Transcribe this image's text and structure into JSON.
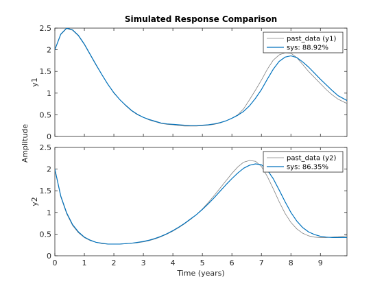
{
  "figure": {
    "title": "Simulated Response Comparison",
    "xlabel": "Time (years)",
    "shared_ylabel": "Amplitude"
  },
  "colors": {
    "measured": "#808080",
    "model": "#0072BD",
    "axes": "#262626",
    "background": "#ffffff"
  },
  "chart_data": [
    {
      "type": "line",
      "ylabel": "y1",
      "xlim": [
        0,
        9.9
      ],
      "ylim": [
        0,
        2.5
      ],
      "xticks": [
        0,
        1,
        2,
        3,
        4,
        5,
        6,
        7,
        8,
        9
      ],
      "yticks": [
        0,
        0.5,
        1,
        1.5,
        2,
        2.5
      ],
      "legend_position": "top-right",
      "series": [
        {
          "name": "past_data (y1)",
          "role": "measured",
          "x": [
            0,
            0.2,
            0.4,
            0.6,
            0.8,
            1.0,
            1.2,
            1.4,
            1.6,
            1.8,
            2.0,
            2.2,
            2.4,
            2.6,
            2.8,
            3.0,
            3.2,
            3.4,
            3.6,
            3.8,
            4.0,
            4.2,
            4.4,
            4.6,
            4.8,
            5.0,
            5.2,
            5.4,
            5.6,
            5.8,
            6.0,
            6.2,
            6.4,
            6.6,
            6.8,
            7.0,
            7.2,
            7.4,
            7.6,
            7.8,
            8.0,
            8.2,
            8.4,
            8.6,
            8.8,
            9.0,
            9.2,
            9.4,
            9.6,
            9.9
          ],
          "y": [
            2.0,
            2.35,
            2.49,
            2.45,
            2.32,
            2.12,
            1.88,
            1.64,
            1.42,
            1.2,
            1.0,
            0.85,
            0.71,
            0.59,
            0.5,
            0.44,
            0.38,
            0.34,
            0.3,
            0.28,
            0.27,
            0.25,
            0.24,
            0.24,
            0.24,
            0.25,
            0.26,
            0.28,
            0.31,
            0.36,
            0.42,
            0.5,
            0.64,
            0.85,
            1.07,
            1.3,
            1.55,
            1.76,
            1.88,
            1.93,
            1.92,
            1.82,
            1.66,
            1.5,
            1.36,
            1.22,
            1.08,
            0.96,
            0.86,
            0.76
          ]
        },
        {
          "name": "sys: 88.92%",
          "role": "model",
          "x": [
            0,
            0.2,
            0.4,
            0.6,
            0.8,
            1.0,
            1.2,
            1.4,
            1.6,
            1.8,
            2.0,
            2.2,
            2.4,
            2.6,
            2.8,
            3.0,
            3.2,
            3.4,
            3.6,
            3.8,
            4.0,
            4.2,
            4.4,
            4.6,
            4.8,
            5.0,
            5.2,
            5.4,
            5.6,
            5.8,
            6.0,
            6.2,
            6.4,
            6.6,
            6.8,
            7.0,
            7.2,
            7.4,
            7.6,
            7.8,
            8.0,
            8.2,
            8.4,
            8.6,
            8.8,
            9.0,
            9.2,
            9.4,
            9.6,
            9.9
          ],
          "y": [
            2.0,
            2.36,
            2.5,
            2.46,
            2.33,
            2.13,
            1.89,
            1.65,
            1.42,
            1.2,
            1.01,
            0.85,
            0.72,
            0.6,
            0.51,
            0.44,
            0.39,
            0.35,
            0.31,
            0.29,
            0.28,
            0.27,
            0.26,
            0.25,
            0.25,
            0.26,
            0.27,
            0.29,
            0.32,
            0.36,
            0.42,
            0.49,
            0.58,
            0.71,
            0.88,
            1.08,
            1.32,
            1.55,
            1.73,
            1.83,
            1.86,
            1.82,
            1.72,
            1.6,
            1.46,
            1.32,
            1.19,
            1.06,
            0.94,
            0.83
          ]
        }
      ]
    },
    {
      "type": "line",
      "ylabel": "y2",
      "xlim": [
        0,
        9.9
      ],
      "ylim": [
        0,
        2.5
      ],
      "xticks": [
        0,
        1,
        2,
        3,
        4,
        5,
        6,
        7,
        8,
        9
      ],
      "yticks": [
        0,
        0.5,
        1,
        1.5,
        2,
        2.5
      ],
      "legend_position": "top-right",
      "series": [
        {
          "name": "past_data (y2)",
          "role": "measured",
          "x": [
            0,
            0.2,
            0.4,
            0.6,
            0.8,
            1.0,
            1.2,
            1.4,
            1.6,
            1.8,
            2.0,
            2.2,
            2.4,
            2.6,
            2.8,
            3.0,
            3.2,
            3.4,
            3.6,
            3.8,
            4.0,
            4.2,
            4.4,
            4.6,
            4.8,
            5.0,
            5.2,
            5.4,
            5.6,
            5.8,
            6.0,
            6.2,
            6.4,
            6.6,
            6.8,
            7.0,
            7.2,
            7.4,
            7.6,
            7.8,
            8.0,
            8.2,
            8.4,
            8.6,
            8.8,
            9.0,
            9.2,
            9.4,
            9.6,
            9.9
          ],
          "y": [
            2.0,
            1.36,
            0.97,
            0.7,
            0.53,
            0.42,
            0.35,
            0.31,
            0.28,
            0.27,
            0.27,
            0.27,
            0.28,
            0.29,
            0.3,
            0.32,
            0.35,
            0.39,
            0.44,
            0.5,
            0.57,
            0.65,
            0.74,
            0.84,
            0.95,
            1.08,
            1.23,
            1.39,
            1.56,
            1.73,
            1.9,
            2.05,
            2.16,
            2.2,
            2.18,
            2.06,
            1.83,
            1.55,
            1.25,
            0.98,
            0.77,
            0.62,
            0.52,
            0.46,
            0.43,
            0.42,
            0.42,
            0.43,
            0.44,
            0.46
          ]
        },
        {
          "name": "sys: 86.35%",
          "role": "model",
          "x": [
            0,
            0.2,
            0.4,
            0.6,
            0.8,
            1.0,
            1.2,
            1.4,
            1.6,
            1.8,
            2.0,
            2.2,
            2.4,
            2.6,
            2.8,
            3.0,
            3.2,
            3.4,
            3.6,
            3.8,
            4.0,
            4.2,
            4.4,
            4.6,
            4.8,
            5.0,
            5.2,
            5.4,
            5.6,
            5.8,
            6.0,
            6.2,
            6.4,
            6.6,
            6.8,
            7.0,
            7.2,
            7.4,
            7.6,
            7.8,
            8.0,
            8.2,
            8.4,
            8.6,
            8.8,
            9.0,
            9.2,
            9.4,
            9.6,
            9.9
          ],
          "y": [
            2.0,
            1.38,
            0.99,
            0.72,
            0.55,
            0.43,
            0.36,
            0.31,
            0.29,
            0.27,
            0.27,
            0.27,
            0.28,
            0.29,
            0.31,
            0.33,
            0.36,
            0.4,
            0.45,
            0.51,
            0.58,
            0.66,
            0.75,
            0.85,
            0.95,
            1.07,
            1.2,
            1.34,
            1.49,
            1.64,
            1.78,
            1.91,
            2.02,
            2.09,
            2.12,
            2.1,
            1.98,
            1.78,
            1.52,
            1.25,
            1.0,
            0.8,
            0.65,
            0.55,
            0.49,
            0.45,
            0.43,
            0.42,
            0.42,
            0.42
          ]
        }
      ]
    }
  ]
}
